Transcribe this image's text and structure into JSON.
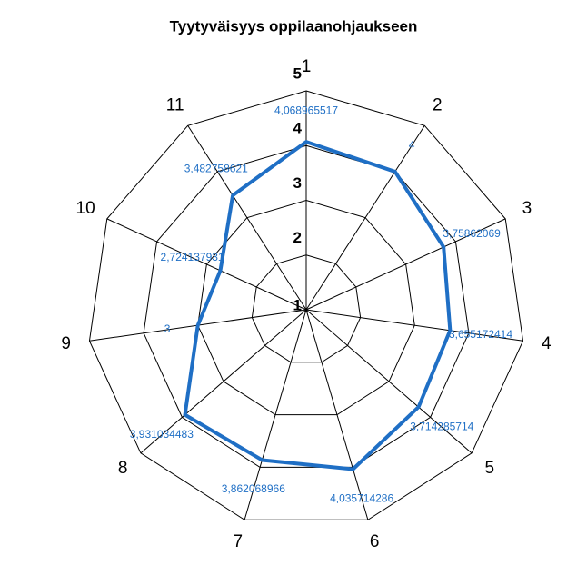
{
  "chart_data": {
    "type": "radar",
    "title": "Tyytyväisyys oppilaanohjaukseen",
    "categories": [
      "1",
      "2",
      "3",
      "4",
      "5",
      "6",
      "7",
      "8",
      "9",
      "10",
      "11"
    ],
    "values": [
      4.068965517,
      4,
      3.75862069,
      3.655172414,
      3.714285714,
      4.035714286,
      3.862068966,
      3.931034483,
      3,
      2.724137931,
      3.482758621
    ],
    "value_labels": [
      "4,068965517",
      "4",
      "3,75862069",
      "3,655172414",
      "3,714285714",
      "4,035714286",
      "3,862068966",
      "3,931034483",
      "3",
      "2,724137931",
      "3,482758621"
    ],
    "color": "#1f6fc5",
    "ylim": [
      1,
      5
    ],
    "yticks": [
      1,
      2,
      3,
      4,
      5
    ],
    "grid": true
  }
}
